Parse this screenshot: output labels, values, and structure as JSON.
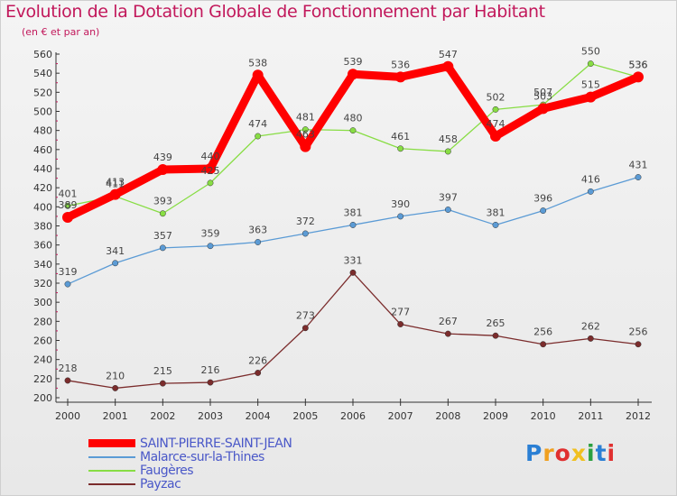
{
  "title": "Evolution de la Dotation Globale de Fonctionnement par Habitant",
  "subtitle": "(en € et par an)",
  "logo": {
    "text": "Proxiti",
    "colors": [
      "#2a7fd4",
      "#f0a020",
      "#e03030",
      "#f0c020",
      "#2aa040",
      "#2a7fd4",
      "#e03030"
    ]
  },
  "chart_data": {
    "type": "line",
    "title": "Evolution de la Dotation Globale de Fonctionnement par Habitant",
    "ylabel": "(en € et par an)",
    "x": [
      "2000",
      "2001",
      "2002",
      "2003",
      "2004",
      "2005",
      "2006",
      "2007",
      "2008",
      "2009",
      "2010",
      "2011",
      "2012"
    ],
    "ylim": [
      200,
      560
    ],
    "yticks": [
      200,
      220,
      240,
      260,
      280,
      300,
      320,
      340,
      360,
      380,
      400,
      420,
      440,
      460,
      480,
      500,
      520,
      540,
      560
    ],
    "grid": false,
    "legend_position": "bottom-left",
    "series": [
      {
        "name": "SAINT-PIERRE-SAINT-JEAN",
        "color": "#ff0000",
        "values": [
          389,
          413,
          439,
          440,
          538,
          463,
          539,
          536,
          547,
          474,
          503,
          515,
          536
        ]
      },
      {
        "name": "Malarce-sur-la-Thines",
        "color": "#5b9bd5",
        "values": [
          319,
          341,
          357,
          359,
          363,
          372,
          381,
          390,
          397,
          381,
          396,
          416,
          431
        ]
      },
      {
        "name": "Faugères",
        "color": "#88dd44",
        "values": [
          401,
          411,
          393,
          425,
          474,
          481,
          480,
          461,
          458,
          502,
          507,
          550,
          536
        ]
      },
      {
        "name": "Payzac",
        "color": "#7b2c2c",
        "values": [
          218,
          210,
          215,
          216,
          226,
          273,
          331,
          277,
          267,
          265,
          256,
          262,
          256
        ]
      }
    ]
  }
}
